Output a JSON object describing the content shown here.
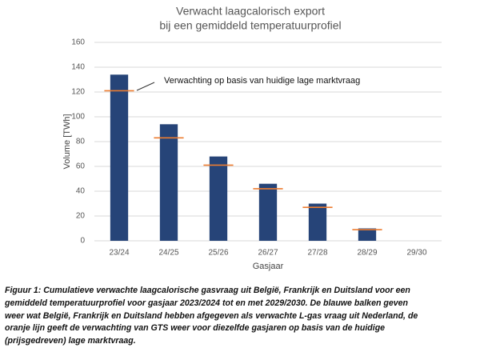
{
  "chart_data": {
    "type": "bar",
    "title": "Verwacht laagcalorisch export",
    "subtitle": "bij een gemiddeld temperatuurprofiel",
    "categories": [
      "23/24",
      "24/25",
      "25/26",
      "26/27",
      "27/28",
      "28/29",
      "29/30"
    ],
    "values": [
      134,
      94,
      68,
      46,
      30,
      10,
      null
    ],
    "color": "#264478",
    "reference": {
      "color": "#ed7d31",
      "values": [
        121,
        83,
        61,
        42,
        27,
        9,
        null
      ]
    },
    "annotation": "Verwachting op basis van huidige lage marktvraag",
    "ylabel": "Volume [TWh]",
    "xlabel": "Gasjaar",
    "ylim": [
      0,
      160
    ],
    "yticks": [
      0,
      20,
      40,
      60,
      80,
      100,
      120,
      140,
      160
    ],
    "grid": true
  },
  "caption": [
    "Figuur 1: Cumulatieve verwachte laagcalorische gasvraag uit België, Frankrijk en Duitsland voor een",
    "gemiddeld temperatuurprofiel voor gasjaar 2023/2024 tot en met 2029/2030. De blauwe balken geven",
    "weer wat België, Frankrijk en Duitsland hebben afgegeven als verwachte L-gas vraag uit Nederland, de",
    "oranje lijn geeft de verwachting van GTS weer voor diezelfde gasjaren op basis van de huidige",
    "(prijsgedreven) lage marktvraag."
  ]
}
